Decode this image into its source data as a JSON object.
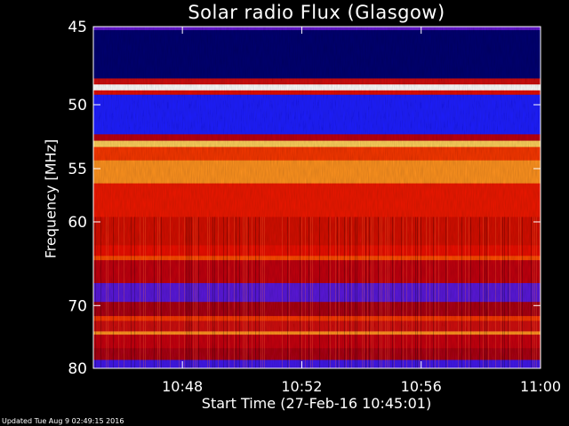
{
  "title": "Solar radio Flux (Glasgow)",
  "ylabel": "Frequency [MHz]",
  "xlabel": "Start Time (27-Feb-16 10:45:01)",
  "footer": "Updated Tue Aug  9 02:49:15 2016",
  "chart_data": {
    "type": "heatmap",
    "title": "Solar radio Flux (Glasgow)",
    "xlabel": "Start Time (27-Feb-16 10:45:01)",
    "ylabel": "Frequency [MHz]",
    "x_range": [
      "10:45:01",
      "11:00"
    ],
    "x_ticks": [
      "10:48",
      "10:52",
      "10:56",
      "11:00"
    ],
    "y_range_mhz": [
      45,
      80
    ],
    "y_scale": "reciprocal",
    "y_ticks": [
      45,
      50,
      55,
      60,
      70,
      80
    ],
    "colormap": "blue-red-yellow-white",
    "grid": false,
    "bands": [
      {
        "f_start": 45.0,
        "f_end": 45.2,
        "level": 0.42
      },
      {
        "f_start": 45.2,
        "f_end": 48.2,
        "level": 0.08
      },
      {
        "f_start": 48.2,
        "f_end": 48.6,
        "level": 0.66
      },
      {
        "f_start": 48.6,
        "f_end": 49.0,
        "level": 1.0
      },
      {
        "f_start": 49.0,
        "f_end": 49.3,
        "level": 0.7
      },
      {
        "f_start": 49.3,
        "f_end": 52.2,
        "level": 0.3
      },
      {
        "f_start": 52.2,
        "f_end": 52.7,
        "level": 0.62
      },
      {
        "f_start": 52.7,
        "f_end": 53.2,
        "level": 0.95
      },
      {
        "f_start": 53.2,
        "f_end": 54.3,
        "level": 0.8
      },
      {
        "f_start": 54.3,
        "f_end": 56.3,
        "level": 0.9
      },
      {
        "f_start": 56.3,
        "f_end": 59.5,
        "level": 0.74
      },
      {
        "f_start": 59.5,
        "f_end": 62.5,
        "level": 0.67
      },
      {
        "f_start": 62.5,
        "f_end": 63.7,
        "level": 0.72
      },
      {
        "f_start": 63.7,
        "f_end": 64.2,
        "level": 0.84
      },
      {
        "f_start": 64.2,
        "f_end": 67.0,
        "level": 0.63
      },
      {
        "f_start": 67.0,
        "f_end": 69.5,
        "level": 0.4
      },
      {
        "f_start": 69.5,
        "f_end": 71.5,
        "level": 0.58
      },
      {
        "f_start": 71.5,
        "f_end": 72.2,
        "level": 0.8
      },
      {
        "f_start": 72.2,
        "f_end": 73.8,
        "level": 0.66
      },
      {
        "f_start": 73.8,
        "f_end": 74.3,
        "level": 0.9
      },
      {
        "f_start": 74.3,
        "f_end": 76.5,
        "level": 0.64
      },
      {
        "f_start": 76.5,
        "f_end": 78.5,
        "level": 0.58
      },
      {
        "f_start": 78.5,
        "f_end": 80.0,
        "level": 0.36
      }
    ],
    "colors": {
      "background": "#000000",
      "axis": "#ffffff"
    }
  }
}
